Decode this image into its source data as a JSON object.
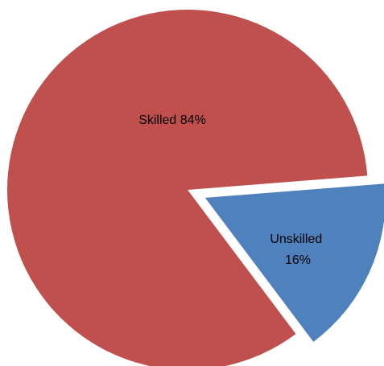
{
  "chart_data": {
    "type": "pie",
    "slices": [
      {
        "name": "Skilled",
        "value": 84,
        "color": "#C0504D",
        "label_lines": [
          "Skilled 84%"
        ],
        "exploded": false
      },
      {
        "name": "Unskilled",
        "value": 16,
        "color": "#4F81BD",
        "label_lines": [
          "Unskilled",
          "16%"
        ],
        "exploded": true
      }
    ],
    "title": "",
    "legend": "none"
  }
}
